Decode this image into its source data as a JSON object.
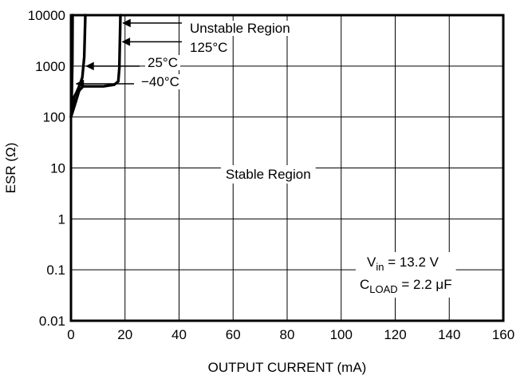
{
  "chart_data": {
    "type": "line",
    "title": "",
    "xlabel": "OUTPUT CURRENT (mA)",
    "ylabel": "ESR (Ω)",
    "xlim": [
      0,
      160
    ],
    "ylim": [
      0.01,
      10000
    ],
    "y_scale": "log",
    "grid": true,
    "x_ticks": [
      0,
      20,
      40,
      60,
      80,
      100,
      120,
      140,
      160
    ],
    "x_tick_labels": [
      "0",
      "20",
      "40",
      "60",
      "80",
      "100",
      "120",
      "140",
      "160"
    ],
    "y_ticks": [
      0.01,
      0.1,
      1,
      10,
      100,
      1000,
      10000
    ],
    "y_tick_labels": [
      "0.01",
      "0.1",
      "1",
      "10",
      "100",
      "1000",
      "10000"
    ],
    "series": [
      {
        "name": "125°C",
        "color": "#000000",
        "points": [
          [
            0,
            100
          ],
          [
            1.5,
            180
          ],
          [
            3,
            330
          ],
          [
            4.5,
            400
          ],
          [
            8,
            400
          ],
          [
            12,
            400
          ],
          [
            16,
            430
          ],
          [
            17.5,
            500
          ],
          [
            17.9,
            900
          ],
          [
            18.1,
            3000
          ],
          [
            18.3,
            10000
          ]
        ]
      },
      {
        "name": "25°C",
        "color": "#000000",
        "points": [
          [
            0,
            100
          ],
          [
            0.6,
            150
          ],
          [
            1.2,
            250
          ],
          [
            2,
            300
          ],
          [
            3.2,
            420
          ],
          [
            4.2,
            600
          ],
          [
            4.9,
            1500
          ],
          [
            5.3,
            10000
          ]
        ]
      },
      {
        "name": "−40°C",
        "color": "#000000",
        "points": [
          [
            0,
            100
          ],
          [
            0.3,
            300
          ],
          [
            0.5,
            1200
          ],
          [
            0.6,
            10000
          ]
        ]
      }
    ],
    "annotations": [
      {
        "id": "unstable",
        "text": "Unstable Region",
        "value_x": 18.4,
        "value_y": 7000
      },
      {
        "id": "t125",
        "text": "125°C",
        "value_x": 18.2,
        "value_y": 3000
      },
      {
        "id": "t25",
        "text": "25°C",
        "value_x": 4.8,
        "value_y": 1000
      },
      {
        "id": "tm40",
        "text": "−40°C",
        "value_x": 1.1,
        "value_y": 450
      }
    ],
    "region_label": "Stable Region",
    "conditions": {
      "vin_prefix": "V",
      "vin_sub": "in",
      "vin_value": " = 13.2 V",
      "cload_prefix": "C",
      "cload_sub": "LOAD",
      "cload_value": " = 2.2 μF"
    }
  }
}
